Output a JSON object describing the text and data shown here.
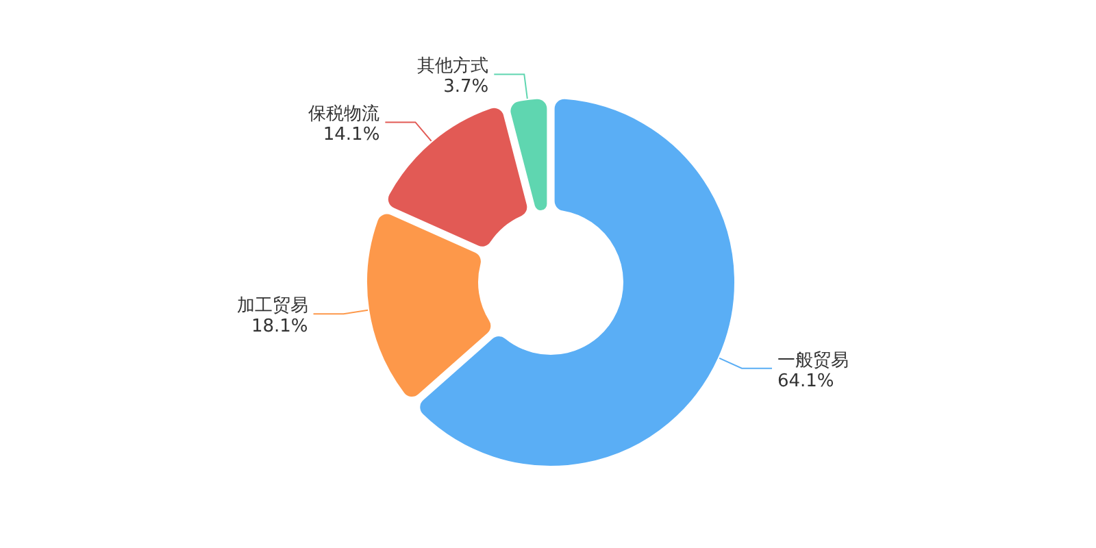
{
  "chart_data": {
    "type": "donut",
    "categories": [
      "一般贸易",
      "加工贸易",
      "保税物流",
      "其他方式"
    ],
    "values": [
      64.1,
      18.1,
      14.1,
      3.7
    ],
    "value_labels": [
      "64.1%",
      "18.1%",
      "14.1%",
      "3.7%"
    ],
    "colors": [
      "#5aaef5",
      "#fd984a",
      "#e25a55",
      "#5fd6b0"
    ]
  }
}
